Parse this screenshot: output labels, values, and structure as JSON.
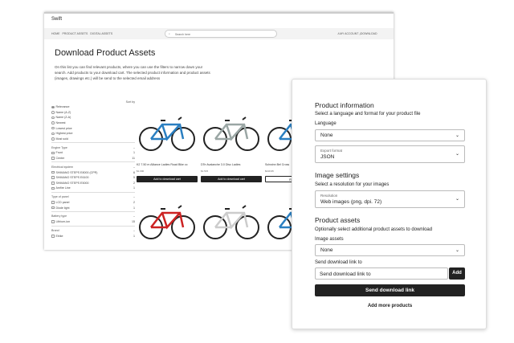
{
  "site": {
    "brand": "Swift",
    "nav": [
      "HOME",
      "PRODUCT ASSETS",
      "DIGITAL ASSETS"
    ],
    "search_placeholder": "Search here",
    "account": "MY ACCOUNT",
    "download": "DOWNLOAD"
  },
  "page": {
    "title": "Download Product Assets",
    "intro": "On this list you can find relevant products, where you can use the filters to narrow down your search. Add products to your download cart. The selected product information and product assets (images, drawings etc.) will be send to the selected email address"
  },
  "sidebar": {
    "sort_label": "Sort by",
    "sort_options": [
      {
        "label": "Relevance",
        "checked": true
      },
      {
        "label": "Name (A-Z)"
      },
      {
        "label": "Name (Z-A)"
      },
      {
        "label": "Newest"
      },
      {
        "label": "Lowest price"
      },
      {
        "label": "Highest price"
      },
      {
        "label": "Most sold"
      }
    ],
    "groups": [
      {
        "title": "Engine Type",
        "items": [
          {
            "label": "Front",
            "count": "1"
          },
          {
            "label": "Center",
            "count": "11"
          }
        ]
      },
      {
        "title": "Electrical system",
        "items": [
          {
            "label": "SHIMANO STEPS E8000 (CPR)",
            "count": "6"
          },
          {
            "label": "SHIMANO STEPS E6100",
            "count": "5"
          },
          {
            "label": "SHIMANO STEPS E5000",
            "count": "2"
          },
          {
            "label": "Amfire Line",
            "count": "1"
          }
        ]
      },
      {
        "title": "Type of panel",
        "items": [
          {
            "label": "LCD panel",
            "count": "2"
          },
          {
            "label": "Diode light",
            "count": "1"
          }
        ]
      },
      {
        "title": "Battery type",
        "items": [
          {
            "label": "Lithium-ion",
            "count": "15"
          }
        ]
      },
      {
        "title": "Brand",
        "items": [
          {
            "label": "Ebike",
            "count": "1"
          }
        ]
      }
    ]
  },
  "products": [
    {
      "name": "K2 7.50 m Alliance Ladies Road Bike cc",
      "price": "$1.000",
      "button": "Add to download cart",
      "color": "#2a7fc1"
    },
    {
      "name": "DTe Avalanche 3.0 Disc Ladies",
      "price": "$1.515",
      "button": "Add to download cart",
      "color": "#9aa6a4"
    },
    {
      "name": "Schwinn Bel Cross",
      "price": "$449.95",
      "button": "Remove f",
      "color": "#2a7fc1",
      "added": true
    },
    {
      "color": "#c22"
    },
    {
      "color": "#ccc"
    },
    {
      "color": "#2a7fc1"
    }
  ],
  "panel": {
    "product_info_title": "Product information",
    "product_info_sub": "Select a language and format for your product file",
    "language_label": "Language",
    "language_value": "None",
    "export_label": "Export format",
    "export_value": "JSON",
    "image_title": "Image settings",
    "image_sub": "Select a resolution for your images",
    "resolution_label": "Resolution",
    "resolution_value": "Web images (png, dpi. 72)",
    "assets_title": "Product assets",
    "assets_sub": "Optionally select additional product assets to download",
    "image_assets_label": "Image assets",
    "image_assets_value": "None",
    "send_label": "Send download link to",
    "send_placeholder": "Send download link to",
    "add_button": "Add",
    "send_button": "Send download link",
    "more_button": "Add more products"
  }
}
